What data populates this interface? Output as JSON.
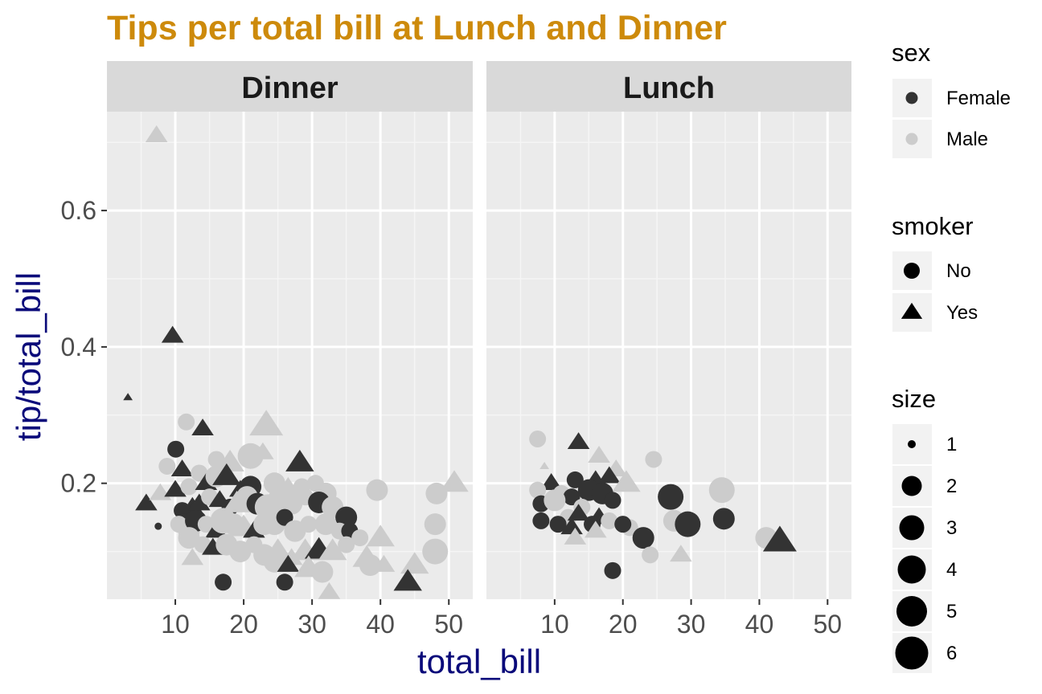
{
  "chart_data": {
    "type": "scatter",
    "title": "Tips per total bill at Lunch and Dinner",
    "xlabel": "total_bill",
    "ylabel": "tip/total_bill",
    "xlim": [
      0,
      53.5
    ],
    "ylim": [
      0.03,
      0.745
    ],
    "x_ticks": [
      10,
      20,
      30,
      40,
      50
    ],
    "y_ticks": [
      0.2,
      0.4,
      0.6
    ],
    "grid": true,
    "colors": {
      "Female": "#333333",
      "Male": "#cccccc",
      "panel": "#ebebeb",
      "strip": "#d9d9d9",
      "title": "#CD8A0B",
      "axis_title": "#0a0a7a"
    },
    "facets": [
      {
        "name": "Dinner",
        "points": [
          [
            7.25,
            0.71,
            "Male",
            "Yes",
            2
          ],
          [
            9.6,
            0.416,
            "Female",
            "Yes",
            2
          ],
          [
            3.07,
            0.326,
            "Female",
            "Yes",
            1
          ],
          [
            7.5,
            0.137,
            "Female",
            "No",
            1
          ],
          [
            11.6,
            0.29,
            "Male",
            "No",
            2
          ],
          [
            10.07,
            0.25,
            "Female",
            "No",
            2
          ],
          [
            14.0,
            0.28,
            "Female",
            "Yes",
            2
          ],
          [
            23.3,
            0.285,
            "Male",
            "Yes",
            4
          ],
          [
            28.2,
            0.23,
            "Female",
            "Yes",
            3
          ],
          [
            21.0,
            0.24,
            "Male",
            "No",
            4
          ],
          [
            8.8,
            0.225,
            "Male",
            "No",
            2
          ],
          [
            11.0,
            0.22,
            "Female",
            "Yes",
            2
          ],
          [
            13.5,
            0.215,
            "Male",
            "No",
            2
          ],
          [
            16.0,
            0.235,
            "Male",
            "No",
            2
          ],
          [
            18.0,
            0.23,
            "Male",
            "Yes",
            3
          ],
          [
            22.8,
            0.245,
            "Male",
            "Yes",
            2
          ],
          [
            5.75,
            0.17,
            "Female",
            "Yes",
            2
          ],
          [
            7.8,
            0.185,
            "Male",
            "Yes",
            2
          ],
          [
            10.0,
            0.19,
            "Female",
            "Yes",
            2
          ],
          [
            12.0,
            0.195,
            "Male",
            "No",
            2
          ],
          [
            14.5,
            0.2,
            "Female",
            "Yes",
            2
          ],
          [
            16.0,
            0.21,
            "Male",
            "No",
            3
          ],
          [
            17.5,
            0.21,
            "Female",
            "Yes",
            3
          ],
          [
            19.5,
            0.19,
            "Female",
            "Yes",
            2
          ],
          [
            21.0,
            0.195,
            "Female",
            "No",
            3
          ],
          [
            24.5,
            0.2,
            "Male",
            "No",
            3
          ],
          [
            26.5,
            0.19,
            "Male",
            "Yes",
            3
          ],
          [
            28.5,
            0.195,
            "Male",
            "No",
            2
          ],
          [
            30.5,
            0.2,
            "Male",
            "No",
            2
          ],
          [
            32.0,
            0.185,
            "Male",
            "No",
            3
          ],
          [
            39.5,
            0.19,
            "Male",
            "No",
            3
          ],
          [
            48.2,
            0.185,
            "Male",
            "No",
            3
          ],
          [
            50.8,
            0.2,
            "Male",
            "Yes",
            3
          ],
          [
            11.0,
            0.16,
            "Female",
            "No",
            2
          ],
          [
            12.5,
            0.165,
            "Female",
            "Yes",
            2
          ],
          [
            13.5,
            0.17,
            "Female",
            "Yes",
            2
          ],
          [
            15.0,
            0.18,
            "Male",
            "No",
            2
          ],
          [
            16.5,
            0.175,
            "Female",
            "Yes",
            2
          ],
          [
            18.0,
            0.165,
            "Female",
            "No",
            2
          ],
          [
            19.0,
            0.17,
            "Male",
            "Yes",
            3
          ],
          [
            20.5,
            0.18,
            "Male",
            "No",
            3
          ],
          [
            22.0,
            0.17,
            "Female",
            "No",
            3
          ],
          [
            23.5,
            0.165,
            "Male",
            "No",
            4
          ],
          [
            25.0,
            0.175,
            "Male",
            "No",
            3
          ],
          [
            27.0,
            0.17,
            "Male",
            "No",
            3
          ],
          [
            29.0,
            0.18,
            "Male",
            "No",
            2
          ],
          [
            31.0,
            0.172,
            "Female",
            "No",
            3
          ],
          [
            33.0,
            0.165,
            "Male",
            "No",
            3
          ],
          [
            35.0,
            0.15,
            "Female",
            "No",
            3
          ],
          [
            10.5,
            0.14,
            "Male",
            "No",
            2
          ],
          [
            12.0,
            0.13,
            "Male",
            "No",
            3
          ],
          [
            13.0,
            0.145,
            "Female",
            "No",
            3
          ],
          [
            14.5,
            0.14,
            "Male",
            "No",
            2
          ],
          [
            16.0,
            0.13,
            "Female",
            "Yes",
            2
          ],
          [
            17.0,
            0.145,
            "Male",
            "No",
            4
          ],
          [
            18.5,
            0.14,
            "Male",
            "No",
            3
          ],
          [
            20.0,
            0.135,
            "Male",
            "Yes",
            3
          ],
          [
            21.5,
            0.13,
            "Female",
            "Yes",
            2
          ],
          [
            23.0,
            0.14,
            "Male",
            "No",
            3
          ],
          [
            24.5,
            0.14,
            "Male",
            "No",
            3
          ],
          [
            26.0,
            0.15,
            "Female",
            "No",
            2
          ],
          [
            27.5,
            0.13,
            "Male",
            "No",
            3
          ],
          [
            29.5,
            0.14,
            "Male",
            "No",
            2
          ],
          [
            32.0,
            0.14,
            "Male",
            "No",
            3
          ],
          [
            34.0,
            0.13,
            "Male",
            "No",
            2
          ],
          [
            35.5,
            0.13,
            "Female",
            "No",
            2
          ],
          [
            37.0,
            0.12,
            "Male",
            "No",
            2
          ],
          [
            40.0,
            0.12,
            "Male",
            "Yes",
            3
          ],
          [
            48.0,
            0.14,
            "Male",
            "No",
            3
          ],
          [
            12.0,
            0.12,
            "Male",
            "No",
            3
          ],
          [
            14.0,
            0.11,
            "Male",
            "No",
            2
          ],
          [
            15.5,
            0.105,
            "Female",
            "Yes",
            2
          ],
          [
            17.5,
            0.11,
            "Male",
            "No",
            3
          ],
          [
            19.5,
            0.1,
            "Male",
            "No",
            3
          ],
          [
            21.5,
            0.11,
            "Male",
            "No",
            2
          ],
          [
            23.0,
            0.095,
            "Male",
            "No",
            3
          ],
          [
            25.0,
            0.1,
            "Male",
            "Yes",
            3
          ],
          [
            27.0,
            0.09,
            "Male",
            "Yes",
            2
          ],
          [
            29.0,
            0.1,
            "Male",
            "Yes",
            3
          ],
          [
            31.0,
            0.102,
            "Female",
            "Yes",
            3
          ],
          [
            33.0,
            0.1,
            "Male",
            "Yes",
            3
          ],
          [
            35.0,
            0.11,
            "Male",
            "No",
            2
          ],
          [
            38.0,
            0.09,
            "Male",
            "Yes",
            3
          ],
          [
            40.5,
            0.08,
            "Male",
            "Yes",
            2
          ],
          [
            45.0,
            0.08,
            "Male",
            "Yes",
            3
          ],
          [
            48.0,
            0.1,
            "Male",
            "No",
            4
          ],
          [
            12.5,
            0.09,
            "Male",
            "Yes",
            2
          ],
          [
            17.0,
            0.055,
            "Female",
            "No",
            2
          ],
          [
            24.5,
            0.085,
            "Male",
            "No",
            3
          ],
          [
            26.0,
            0.055,
            "Female",
            "No",
            2
          ],
          [
            26.5,
            0.08,
            "Female",
            "Yes",
            2
          ],
          [
            29.5,
            0.075,
            "Male",
            "Yes",
            3
          ],
          [
            31.5,
            0.07,
            "Male",
            "No",
            3
          ],
          [
            32.5,
            0.04,
            "Male",
            "Yes",
            2
          ],
          [
            44.0,
            0.055,
            "Female",
            "Yes",
            3
          ],
          [
            38.5,
            0.08,
            "Male",
            "No",
            3
          ]
        ]
      },
      {
        "name": "Lunch",
        "points": [
          [
            7.5,
            0.265,
            "Male",
            "No",
            2
          ],
          [
            13.5,
            0.26,
            "Female",
            "Yes",
            2
          ],
          [
            16.5,
            0.24,
            "Male",
            "Yes",
            2
          ],
          [
            24.5,
            0.235,
            "Male",
            "No",
            2
          ],
          [
            8.5,
            0.225,
            "Male",
            "Yes",
            1
          ],
          [
            19.0,
            0.22,
            "Male",
            "Yes",
            2
          ],
          [
            18.0,
            0.21,
            "Female",
            "Yes",
            2
          ],
          [
            13.0,
            0.205,
            "Female",
            "No",
            2
          ],
          [
            9.5,
            0.2,
            "Female",
            "Yes",
            2
          ],
          [
            16.0,
            0.2,
            "Female",
            "Yes",
            3
          ],
          [
            20.5,
            0.2,
            "Male",
            "Yes",
            3
          ],
          [
            34.5,
            0.19,
            "Male",
            "No",
            4
          ],
          [
            7.5,
            0.19,
            "Male",
            "No",
            2
          ],
          [
            11.0,
            0.185,
            "Male",
            "No",
            2
          ],
          [
            12.5,
            0.18,
            "Female",
            "No",
            2
          ],
          [
            15.0,
            0.19,
            "Female",
            "No",
            3
          ],
          [
            17.0,
            0.185,
            "Female",
            "No",
            3
          ],
          [
            27.0,
            0.18,
            "Female",
            "No",
            4
          ],
          [
            8.0,
            0.17,
            "Female",
            "No",
            2
          ],
          [
            10.0,
            0.175,
            "Male",
            "No",
            3
          ],
          [
            14.0,
            0.165,
            "Male",
            "No",
            2
          ],
          [
            18.5,
            0.175,
            "Female",
            "No",
            2
          ],
          [
            12.0,
            0.15,
            "Male",
            "No",
            2
          ],
          [
            13.5,
            0.155,
            "Female",
            "Yes",
            2
          ],
          [
            16.5,
            0.15,
            "Female",
            "Yes",
            2
          ],
          [
            8.0,
            0.145,
            "Female",
            "No",
            2
          ],
          [
            10.5,
            0.14,
            "Female",
            "No",
            2
          ],
          [
            12.5,
            0.135,
            "Female",
            "Yes",
            2
          ],
          [
            15.5,
            0.14,
            "Female",
            "No",
            2
          ],
          [
            18.0,
            0.145,
            "Male",
            "No",
            2
          ],
          [
            21.0,
            0.135,
            "Male",
            "No",
            2
          ],
          [
            27.5,
            0.145,
            "Male",
            "No",
            3
          ],
          [
            29.5,
            0.14,
            "Female",
            "No",
            4
          ],
          [
            34.8,
            0.148,
            "Female",
            "No",
            3
          ],
          [
            20.0,
            0.14,
            "Female",
            "No",
            2
          ],
          [
            13.0,
            0.12,
            "Male",
            "Yes",
            2
          ],
          [
            16.0,
            0.13,
            "Male",
            "Yes",
            2
          ],
          [
            23.0,
            0.12,
            "Female",
            "No",
            3
          ],
          [
            41.0,
            0.12,
            "Male",
            "No",
            3
          ],
          [
            43.0,
            0.115,
            "Female",
            "Yes",
            4
          ],
          [
            24.0,
            0.095,
            "Male",
            "No",
            2
          ],
          [
            28.5,
            0.095,
            "Male",
            "Yes",
            2
          ],
          [
            18.5,
            0.072,
            "Female",
            "No",
            2
          ]
        ]
      }
    ],
    "legend": {
      "placement": "right",
      "sex": {
        "title": "sex",
        "entries": [
          "Female",
          "Male"
        ]
      },
      "smoker": {
        "title": "smoker",
        "entries": [
          "No",
          "Yes"
        ]
      },
      "size": {
        "title": "size",
        "entries": [
          "1",
          "2",
          "3",
          "4",
          "5",
          "6"
        ]
      }
    }
  }
}
